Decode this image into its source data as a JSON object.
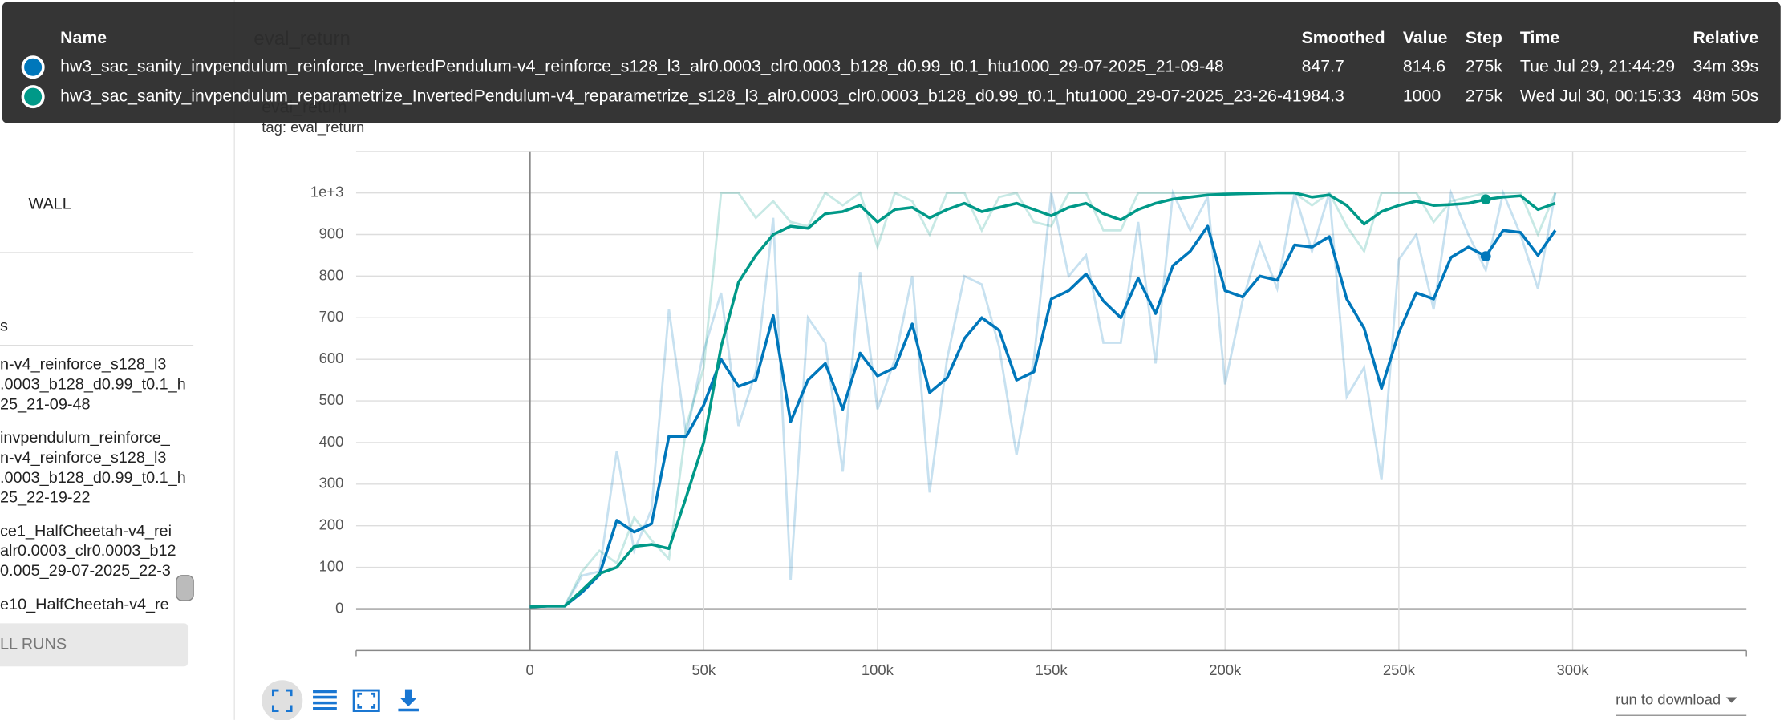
{
  "header": {
    "title": "eval_return"
  },
  "sidebar": {
    "wall_label": "WALL",
    "section_label": "s",
    "runs": [
      [
        "n-v4_reinforce_s128_l3",
        ".0003_b128_d0.99_t0.1_h",
        "25_21-09-48"
      ],
      [
        "invpendulum_reinforce_",
        "n-v4_reinforce_s128_l3",
        ".0003_b128_d0.99_t0.1_h",
        "25_22-19-22"
      ],
      [
        "ce1_HalfCheetah-v4_rei",
        "alr0.0003_clr0.0003_b12",
        "0.005_29-07-2025_22-3"
      ],
      [
        "e10_HalfCheetah-v4_re"
      ]
    ],
    "button": "LL RUNS"
  },
  "tooltip": {
    "columns": [
      "Name",
      "Smoothed",
      "Value",
      "Step",
      "Time",
      "Relative"
    ],
    "rows": [
      {
        "smoothed": "847.7",
        "value": "814.6",
        "step": {
          "value": 275000,
          "label": "275k"
        },
        "time": "Tue Jul 29, 21:44:29",
        "relative": "34m 39s"
      },
      {
        "smoothed": "984.3",
        "value": "1000",
        "step": {
          "value": 275000,
          "label": "275k"
        },
        "time": "Wed Jul 30, 00:15:33",
        "relative": "48m 50s"
      }
    ]
  },
  "chart_data": {
    "type": "line",
    "title": "eval_return",
    "subtitle": "tag: eval_return",
    "x": [
      0,
      5000,
      10000,
      15000,
      20000,
      25000,
      30000,
      35000,
      40000,
      45000,
      50000,
      55000,
      60000,
      65000,
      70000,
      75000,
      80000,
      85000,
      90000,
      95000,
      100000,
      105000,
      110000,
      115000,
      120000,
      125000,
      130000,
      135000,
      140000,
      145000,
      150000,
      155000,
      160000,
      165000,
      170000,
      175000,
      180000,
      185000,
      190000,
      195000,
      200000,
      205000,
      210000,
      215000,
      220000,
      225000,
      230000,
      235000,
      240000,
      245000,
      250000,
      255000,
      260000,
      265000,
      270000,
      275000,
      280000,
      285000,
      290000,
      295000
    ],
    "series": [
      {
        "name": "hw3_sac_sanity_invpendulum_reinforce_InvertedPendulum-v4_reinforce_s128_l3_alr0.0003_clr0.0003_b128_d0.99_t0.1_htu1000_29-07-2025_21-09-48",
        "color": "#0077bb",
        "values": [
          5,
          7,
          7,
          40,
          82,
          213,
          185,
          205,
          415,
          415,
          490,
          600,
          535,
          550,
          705,
          450,
          550,
          590,
          480,
          615,
          560,
          580,
          685,
          520,
          555,
          650,
          700,
          670,
          550,
          570,
          745,
          765,
          805,
          740,
          700,
          795,
          710,
          825,
          860,
          920,
          765,
          750,
          800,
          790,
          875,
          870,
          895,
          745,
          675,
          530,
          665,
          760,
          745,
          845,
          870,
          847.7,
          910,
          905,
          850,
          910
        ],
        "raw_values": [
          5,
          7,
          7,
          80,
          90,
          380,
          140,
          240,
          720,
          415,
          620,
          760,
          440,
          570,
          940,
          70,
          700,
          640,
          330,
          810,
          480,
          600,
          800,
          280,
          600,
          800,
          780,
          630,
          370,
          600,
          1000,
          800,
          850,
          640,
          640,
          930,
          590,
          1000,
          910,
          990,
          540,
          740,
          880,
          770,
          1000,
          860,
          1000,
          510,
          580,
          310,
          840,
          900,
          720,
          1000,
          900,
          814.6,
          1000,
          900,
          770,
          1000
        ]
      },
      {
        "name": "hw3_sac_sanity_invpendulum_reparametrize_InvertedPendulum-v4_reparametrize_s128_l3_alr0.0003_clr0.0003_b128_d0.99_t0.1_htu1000_29-07-2025_23-26-41",
        "color": "#009988",
        "values": [
          5,
          7,
          7,
          45,
          85,
          100,
          150,
          155,
          145,
          270,
          400,
          630,
          785,
          850,
          900,
          920,
          915,
          950,
          955,
          970,
          930,
          960,
          965,
          940,
          960,
          975,
          955,
          965,
          975,
          960,
          945,
          965,
          975,
          950,
          935,
          960,
          975,
          985,
          990,
          995,
          997,
          998,
          999,
          1000,
          1000,
          990,
          995,
          970,
          925,
          955,
          970,
          980,
          970,
          972,
          975,
          984.3,
          990,
          993,
          960,
          975
        ],
        "raw_values": [
          5,
          7,
          7,
          90,
          140,
          110,
          220,
          165,
          120,
          440,
          580,
          1000,
          1000,
          940,
          980,
          930,
          920,
          1000,
          970,
          1000,
          870,
          1000,
          980,
          900,
          1000,
          1000,
          910,
          990,
          1000,
          930,
          920,
          1000,
          1000,
          910,
          910,
          1000,
          1000,
          1000,
          1000,
          1000,
          1000,
          1000,
          1000,
          1000,
          1000,
          970,
          1000,
          920,
          860,
          1000,
          1000,
          1000,
          930,
          980,
          990,
          1000,
          1000,
          1000,
          900,
          1000
        ]
      }
    ],
    "xlim": [
      -50000,
      350000
    ],
    "xticks": [
      0,
      {
        "value": 50000,
        "label": "50k"
      },
      {
        "value": 100000,
        "label": "100k"
      },
      {
        "value": 150000,
        "label": "150k"
      },
      {
        "value": 200000,
        "label": "200k"
      },
      {
        "value": 250000,
        "label": "250k"
      },
      {
        "value": 300000,
        "label": "300k"
      }
    ],
    "ylim": [
      -100,
      1100
    ],
    "yticks": [
      0,
      100,
      200,
      300,
      400,
      500,
      600,
      700,
      800,
      900,
      {
        "value": 1000,
        "label": "1e+3"
      }
    ],
    "grid": true
  },
  "footer": {
    "download_label": "run to download"
  }
}
